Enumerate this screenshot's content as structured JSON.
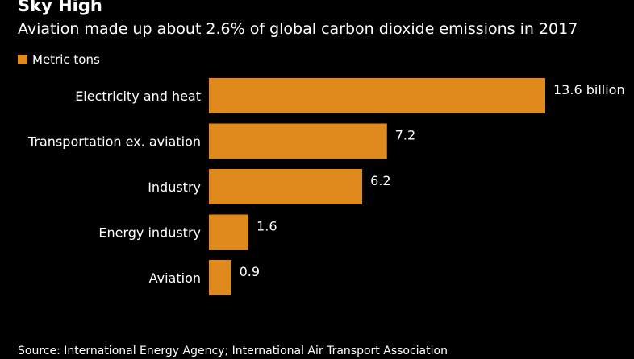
{
  "chart_data": {
    "type": "bar",
    "orientation": "horizontal",
    "title": "Sky High",
    "subtitle": "Aviation made up about 2.6% of global carbon dioxide emissions in 2017",
    "categories": [
      "Electricity and heat",
      "Transportation ex. aviation",
      "Industry",
      "Energy industry",
      "Aviation"
    ],
    "series": [
      {
        "name": "Metric tons",
        "values": [
          13.6,
          7.2,
          6.2,
          1.6,
          0.9
        ],
        "color": "#e08a1e"
      }
    ],
    "value_labels": [
      "13.6 billion",
      "7.2",
      "6.2",
      "1.6",
      "0.9"
    ],
    "xlim": [
      0,
      13.6
    ],
    "grid": false,
    "legend_position": "top-left",
    "source": "Source: International Energy Agency; International Air Transport Association"
  }
}
